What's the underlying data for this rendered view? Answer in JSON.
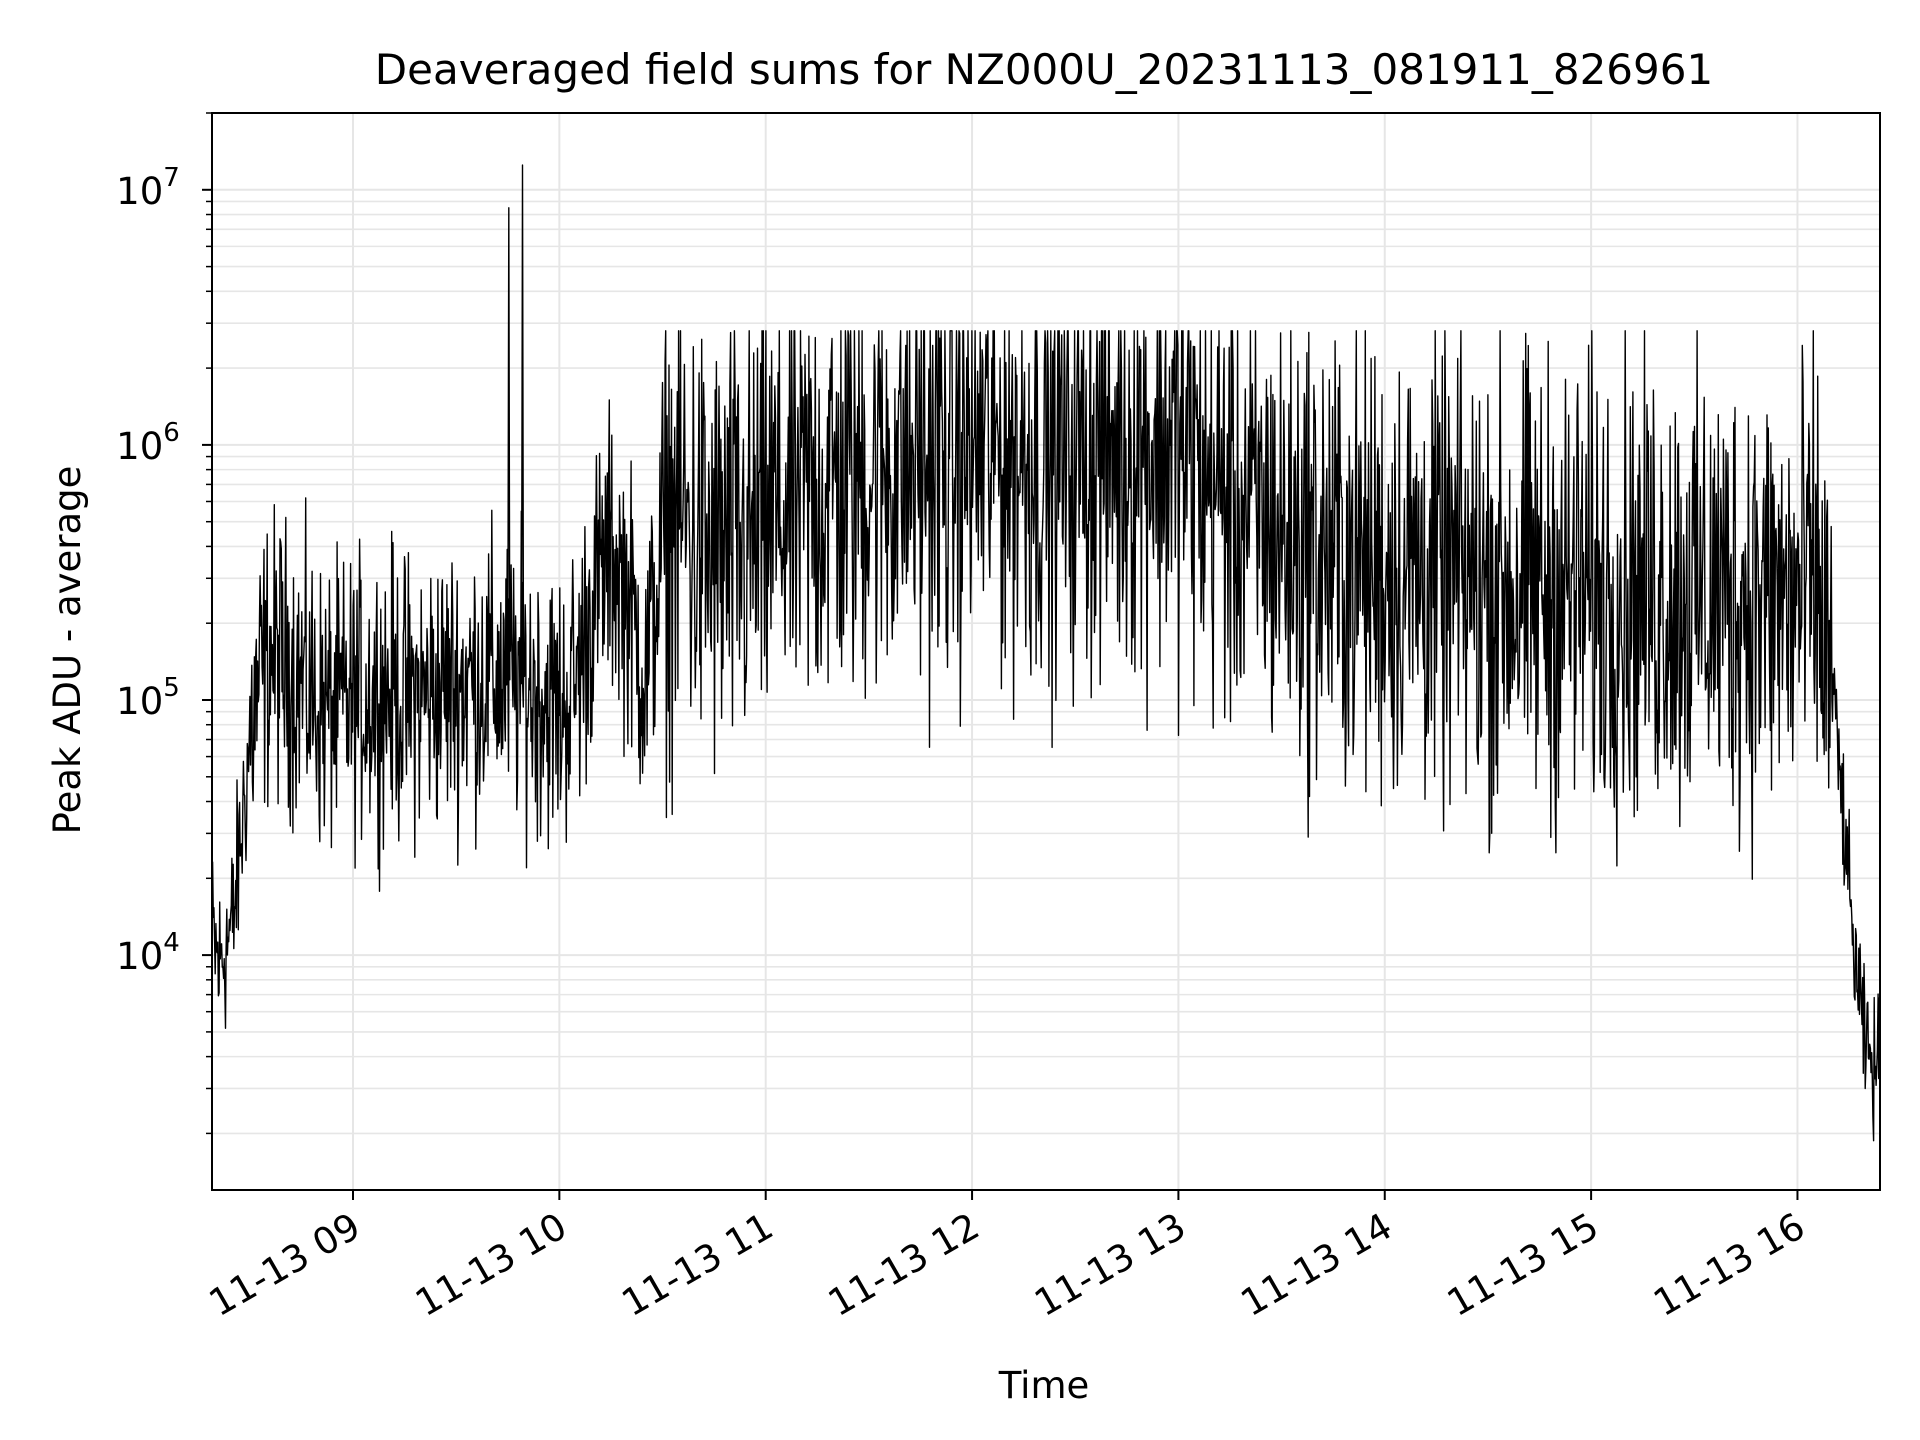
{
  "chart_data": {
    "type": "line",
    "title": "Deaveraged field sums for NZ000U_20231113_081911_826961",
    "xlabel": "Time",
    "ylabel": "Peak ADU - average",
    "y_scale": "log",
    "grid": true,
    "line_color": "#000000",
    "grid_color": "#e6e6e6",
    "x_range": [
      "2023-11-13 08:19",
      "2023-11-13 16:24"
    ],
    "ylim": [
      1200,
      20000000
    ],
    "x_ticks": [
      {
        "time": "2023-11-13 09:00",
        "label": "11-13 09"
      },
      {
        "time": "2023-11-13 10:00",
        "label": "11-13 10"
      },
      {
        "time": "2023-11-13 11:00",
        "label": "11-13 11"
      },
      {
        "time": "2023-11-13 12:00",
        "label": "11-13 12"
      },
      {
        "time": "2023-11-13 13:00",
        "label": "11-13 13"
      },
      {
        "time": "2023-11-13 14:00",
        "label": "11-13 14"
      },
      {
        "time": "2023-11-13 15:00",
        "label": "11-13 15"
      },
      {
        "time": "2023-11-13 16:00",
        "label": "11-13 16"
      }
    ],
    "y_ticks": [
      {
        "value": 10000,
        "base": "10",
        "exp": "4"
      },
      {
        "value": 100000,
        "base": "10",
        "exp": "5"
      },
      {
        "value": 1000000,
        "base": "10",
        "exp": "6"
      },
      {
        "value": 10000000,
        "base": "10",
        "exp": "7"
      }
    ],
    "series": [
      {
        "x": [
          "2023-11-13 08:19",
          "2023-11-13 08:21",
          "2023-11-13 08:23",
          "2023-11-13 08:25",
          "2023-11-13 08:27",
          "2023-11-13 08:30",
          "2023-11-13 08:33",
          "2023-11-13 08:36",
          "2023-11-13 08:40",
          "2023-11-13 08:45",
          "2023-11-13 08:50",
          "2023-11-13 08:55",
          "2023-11-13 09:00",
          "2023-11-13 09:05",
          "2023-11-13 09:10",
          "2023-11-13 09:15",
          "2023-11-13 09:20",
          "2023-11-13 09:25",
          "2023-11-13 09:30",
          "2023-11-13 09:35",
          "2023-11-13 09:40",
          "2023-11-13 09:45",
          "2023-11-13 09:50",
          "2023-11-13 09:55",
          "2023-11-13 10:00",
          "2023-11-13 10:05",
          "2023-11-13 10:10",
          "2023-11-13 10:15",
          "2023-11-13 10:20",
          "2023-11-13 10:25",
          "2023-11-13 10:30",
          "2023-11-13 10:35",
          "2023-11-13 10:40",
          "2023-11-13 10:45",
          "2023-11-13 10:50",
          "2023-11-13 10:55",
          "2023-11-13 11:00",
          "2023-11-13 11:10",
          "2023-11-13 11:20",
          "2023-11-13 11:30",
          "2023-11-13 11:40",
          "2023-11-13 11:50",
          "2023-11-13 12:00",
          "2023-11-13 12:10",
          "2023-11-13 12:20",
          "2023-11-13 12:30",
          "2023-11-13 12:40",
          "2023-11-13 12:50",
          "2023-11-13 13:00",
          "2023-11-13 13:10",
          "2023-11-13 13:20",
          "2023-11-13 13:30",
          "2023-11-13 13:40",
          "2023-11-13 13:50",
          "2023-11-13 14:00",
          "2023-11-13 14:10",
          "2023-11-13 14:20",
          "2023-11-13 14:30",
          "2023-11-13 14:40",
          "2023-11-13 14:50",
          "2023-11-13 15:00",
          "2023-11-13 15:10",
          "2023-11-13 15:20",
          "2023-11-13 15:30",
          "2023-11-13 15:40",
          "2023-11-13 15:50",
          "2023-11-13 16:00",
          "2023-11-13 16:05",
          "2023-11-13 16:10",
          "2023-11-13 16:13",
          "2023-11-13 16:16",
          "2023-11-13 16:19",
          "2023-11-13 16:22",
          "2023-11-13 16:24"
        ],
        "values": [
          12000,
          9000,
          11000,
          13000,
          25000,
          70000,
          120000,
          150000,
          140000,
          120000,
          95000,
          90000,
          100000,
          105000,
          110000,
          100000,
          105000,
          110000,
          115000,
          120000,
          125000,
          120000,
          115000,
          105000,
          90000,
          120000,
          250000,
          380000,
          250000,
          120000,
          400000,
          550000,
          400000,
          350000,
          380000,
          400000,
          500000,
          600000,
          700000,
          800000,
          850000,
          900000,
          950000,
          950000,
          900000,
          950000,
          1000000,
          1050000,
          1000000,
          700000,
          550000,
          450000,
          380000,
          350000,
          330000,
          320000,
          300000,
          280000,
          270000,
          270000,
          270000,
          270000,
          270000,
          260000,
          260000,
          250000,
          240000,
          300000,
          120000,
          40000,
          12000,
          5000,
          3500,
          4000
        ],
        "spikes": [
          {
            "x": "2023-11-13 09:45",
            "value": 8500000
          },
          {
            "x": "2023-11-13 09:49",
            "value": 12500000
          }
        ]
      }
    ]
  }
}
